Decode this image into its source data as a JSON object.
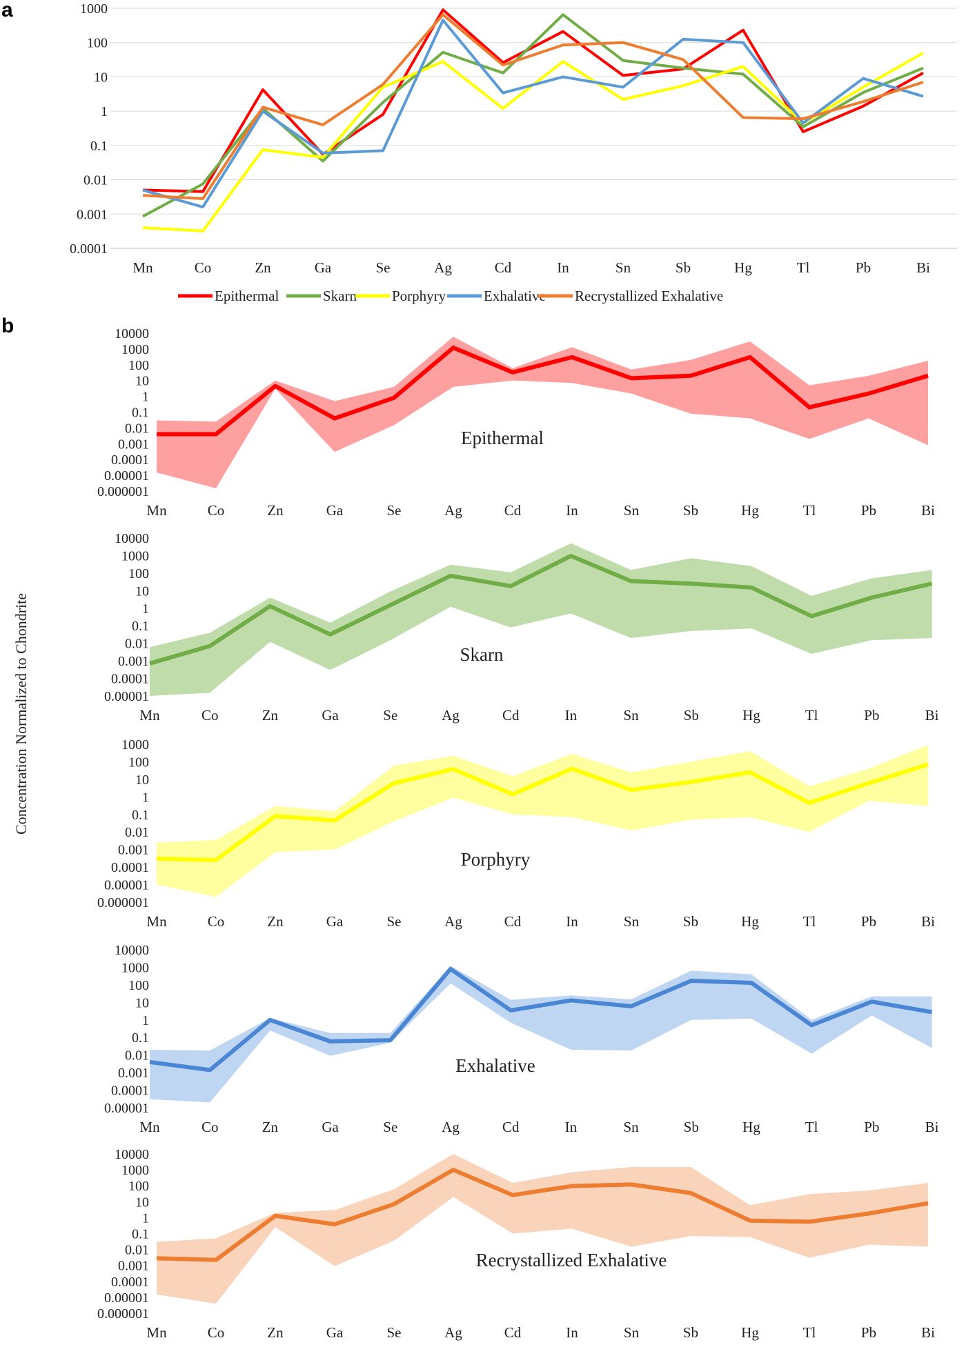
{
  "figure": {
    "panel_a_label": "a",
    "panel_b_label": "b",
    "shared_ylabel": "Concentration Normalized to Chondrite"
  },
  "chart_data": [
    {
      "id": "a",
      "type": "line",
      "yscale": "log",
      "ylim": [
        0.0001,
        1000
      ],
      "yticks": [
        "0.0001",
        "0.001",
        "0.01",
        "0.1",
        "1",
        "10",
        "100",
        "1000"
      ],
      "categories": [
        "Mn",
        "Co",
        "Zn",
        "Ga",
        "Se",
        "Ag",
        "Cd",
        "In",
        "Sn",
        "Sb",
        "Hg",
        "Tl",
        "Pb",
        "Bi"
      ],
      "grid": true,
      "legend_position": "bottom",
      "series": [
        {
          "name": "Epithermal",
          "color": "#FF0000",
          "values": [
            0.005,
            0.0045,
            4.2,
            0.055,
            0.8,
            900,
            26,
            210,
            11,
            17,
            230,
            0.25,
            1.4,
            13
          ]
        },
        {
          "name": "Skarn",
          "color": "#70AD47",
          "values": [
            0.00085,
            0.0075,
            1.2,
            0.035,
            1.8,
            52,
            13,
            650,
            30,
            18,
            12,
            0.35,
            3.5,
            18
          ]
        },
        {
          "name": "Porphyry",
          "color": "#FFFF00",
          "values": [
            0.0004,
            0.00032,
            0.075,
            0.045,
            5,
            28,
            1.2,
            28,
            2.2,
            5.5,
            20,
            0.45,
            5,
            50
          ]
        },
        {
          "name": "Exhalative",
          "color": "#5B9BD5",
          "values": [
            0.005,
            0.0016,
            1,
            0.06,
            0.07,
            450,
            3.4,
            10,
            5,
            125,
            100,
            0.45,
            9,
            2.7
          ]
        },
        {
          "name": "Recrystallized Exhalative",
          "color": "#ED7D31",
          "values": [
            0.0035,
            0.0028,
            1.3,
            0.4,
            6,
            650,
            22,
            85,
            100,
            32,
            0.65,
            0.6,
            1.9,
            7
          ]
        }
      ]
    },
    {
      "id": "b1",
      "type": "area",
      "title": "Epithermal",
      "yscale": "log",
      "ylim": [
        1e-06,
        10000
      ],
      "yticks": [
        "0.000001",
        "0.00001",
        "0.0001",
        "0.001",
        "0.01",
        "0.1",
        "1",
        "10",
        "100",
        "1000",
        "10000"
      ],
      "categories": [
        "Mn",
        "Co",
        "Zn",
        "Ga",
        "Se",
        "Ag",
        "Cd",
        "In",
        "Sn",
        "Sb",
        "Hg",
        "Tl",
        "Pb",
        "Bi"
      ],
      "line_color": "#FF0000",
      "band_color": "#FF8080",
      "median": [
        0.004,
        0.004,
        4.5,
        0.04,
        0.8,
        1200,
        33,
        300,
        14,
        20,
        300,
        0.2,
        1.5,
        20
      ],
      "max": [
        0.03,
        0.025,
        10,
        0.5,
        4,
        6000,
        60,
        1300,
        50,
        200,
        3000,
        5,
        20,
        180
      ],
      "min": [
        1.5e-05,
        1.5e-06,
        3,
        0.0003,
        0.015,
        4,
        10,
        7,
        1.5,
        0.08,
        0.04,
        0.002,
        0.04,
        0.0008
      ]
    },
    {
      "id": "b2",
      "type": "area",
      "title": "Skarn",
      "yscale": "log",
      "ylim": [
        1e-05,
        10000
      ],
      "yticks": [
        "0.00001",
        "0.0001",
        "0.001",
        "0.01",
        "0.1",
        "1",
        "10",
        "100",
        "1000",
        "10000"
      ],
      "categories": [
        "Mn",
        "Co",
        "Zn",
        "Ga",
        "Se",
        "Ag",
        "Cd",
        "In",
        "Sn",
        "Sb",
        "Hg",
        "Tl",
        "Pb",
        "Bi"
      ],
      "line_color": "#70AD47",
      "band_color": "#A9D08E",
      "median": [
        0.0007,
        0.007,
        1.3,
        0.032,
        1.5,
        70,
        18,
        950,
        35,
        25,
        15,
        0.35,
        4,
        25
      ],
      "max": [
        0.006,
        0.04,
        4,
        0.15,
        9,
        300,
        110,
        5000,
        150,
        700,
        250,
        5,
        50,
        150
      ],
      "min": [
        1e-05,
        1.5e-05,
        0.012,
        0.0003,
        0.015,
        1.2,
        0.08,
        0.5,
        0.02,
        0.05,
        0.07,
        0.0025,
        0.015,
        0.02
      ]
    },
    {
      "id": "b3",
      "type": "area",
      "title": "Porphyry",
      "yscale": "log",
      "ylim": [
        1e-06,
        1000
      ],
      "yticks": [
        "0.000001",
        "0.00001",
        "0.0001",
        "0.001",
        "0.01",
        "0.1",
        "1",
        "10",
        "100",
        "1000"
      ],
      "categories": [
        "Mn",
        "Co",
        "Zn",
        "Ga",
        "Se",
        "Ag",
        "Cd",
        "In",
        "Sn",
        "Sb",
        "Hg",
        "Tl",
        "Pb",
        "Bi"
      ],
      "line_color": "#FFFF00",
      "band_color": "#FFFF80",
      "median": [
        0.0003,
        0.00025,
        0.08,
        0.045,
        6,
        38,
        1.4,
        40,
        2.5,
        7,
        25,
        0.45,
        6,
        70
      ],
      "max": [
        0.0025,
        0.0035,
        0.3,
        0.15,
        60,
        220,
        15,
        280,
        25,
        100,
        400,
        4,
        40,
        900
      ],
      "min": [
        1e-05,
        2e-06,
        0.0007,
        0.001,
        0.04,
        0.9,
        0.1,
        0.07,
        0.012,
        0.05,
        0.07,
        0.01,
        0.6,
        0.3
      ]
    },
    {
      "id": "b4",
      "type": "area",
      "title": "Exhalative",
      "yscale": "log",
      "ylim": [
        1e-05,
        10000
      ],
      "yticks": [
        "0.00001",
        "0.0001",
        "0.001",
        "0.01",
        "0.1",
        "1",
        "10",
        "100",
        "1000",
        "10000"
      ],
      "categories": [
        "Mn",
        "Co",
        "Zn",
        "Ga",
        "Se",
        "Ag",
        "Cd",
        "In",
        "Sn",
        "Sb",
        "Hg",
        "Tl",
        "Pb",
        "Bi"
      ],
      "line_color": "#4A86D4",
      "band_color": "#A8C8EC",
      "median": [
        0.004,
        0.0014,
        1,
        0.06,
        0.07,
        800,
        3.5,
        13,
        6,
        170,
        130,
        0.5,
        11,
        2.8
      ],
      "max": [
        0.02,
        0.018,
        1.3,
        0.18,
        0.18,
        1200,
        14,
        25,
        15,
        650,
        400,
        1,
        22,
        22
      ],
      "min": [
        3e-05,
        2e-05,
        0.25,
        0.009,
        0.05,
        120,
        0.7,
        0.02,
        0.018,
        1,
        1.2,
        0.012,
        1.8,
        0.025
      ]
    },
    {
      "id": "b5",
      "type": "area",
      "title": "Recrystallized Exhalative",
      "yscale": "log",
      "ylim": [
        1e-06,
        10000
      ],
      "yticks": [
        "0.000001",
        "0.00001",
        "0.0001",
        "0.001",
        "0.01",
        "0.1",
        "1",
        "10",
        "100",
        "1000",
        "10000"
      ],
      "categories": [
        "Mn",
        "Co",
        "Zn",
        "Ga",
        "Se",
        "Ag",
        "Cd",
        "In",
        "Sn",
        "Sb",
        "Hg",
        "Tl",
        "Pb",
        "Bi"
      ],
      "line_color": "#ED7D31",
      "band_color": "#F8C4A4",
      "median": [
        0.0028,
        0.0022,
        1.3,
        0.38,
        7,
        1000,
        26,
        95,
        120,
        35,
        0.65,
        0.55,
        1.8,
        8
      ],
      "max": [
        0.03,
        0.05,
        2,
        3,
        60,
        10000,
        150,
        700,
        1500,
        1500,
        6,
        30,
        50,
        150
      ],
      "min": [
        1.5e-05,
        4e-06,
        0.25,
        0.0009,
        0.035,
        20,
        0.1,
        0.2,
        0.015,
        0.07,
        0.06,
        0.003,
        0.02,
        0.015
      ]
    }
  ]
}
